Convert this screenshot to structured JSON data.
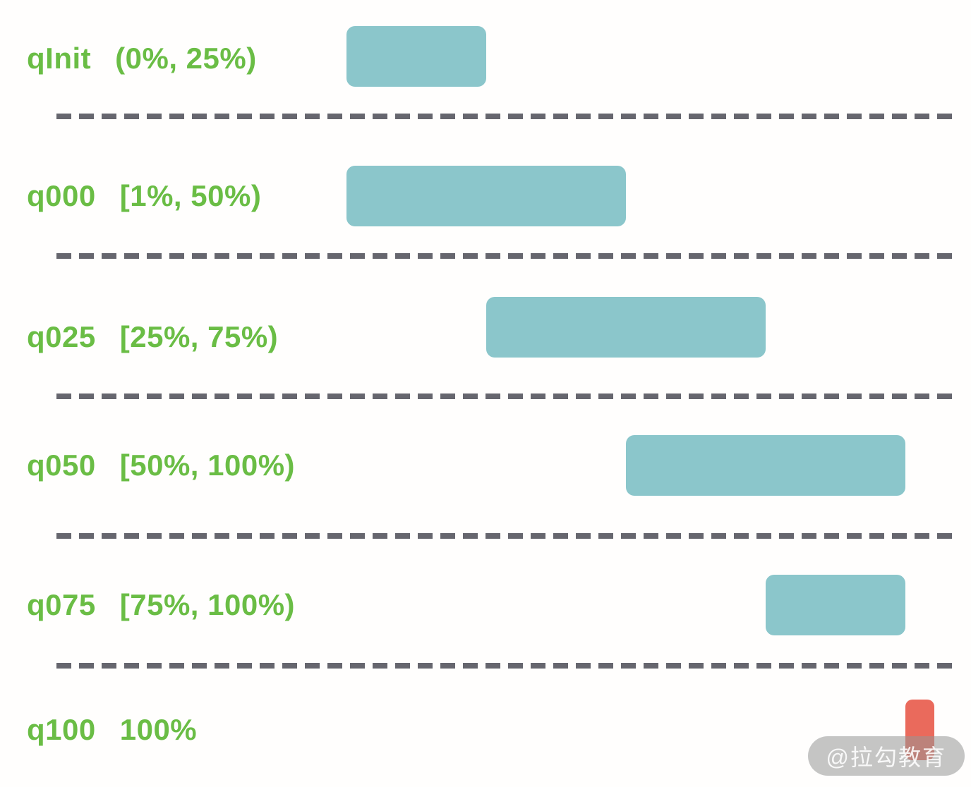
{
  "watermark": {
    "text": "@拉勾教育"
  },
  "chart_data": {
    "type": "bar",
    "subtype": "horizontal-interval-ranges",
    "title": "",
    "xlabel": "",
    "ylabel": "",
    "axis_visible": false,
    "x_range_pct": [
      0,
      100
    ],
    "grid": "dashed horizontal separators between rows",
    "rows": [
      {
        "name": "qInit",
        "range_label": "(0%, 25%)",
        "bar_start_pct": 0,
        "bar_end_pct": 25,
        "color": "teal"
      },
      {
        "name": "q000",
        "range_label": "[1%, 50%)",
        "bar_start_pct": 0,
        "bar_end_pct": 50,
        "color": "teal"
      },
      {
        "name": "q025",
        "range_label": "[25%, 75%)",
        "bar_start_pct": 25,
        "bar_end_pct": 75,
        "color": "teal"
      },
      {
        "name": "q050",
        "range_label": "[50%, 100%)",
        "bar_start_pct": 50,
        "bar_end_pct": 100,
        "color": "teal"
      },
      {
        "name": "q075",
        "range_label": "[75%, 100%)",
        "bar_start_pct": 75,
        "bar_end_pct": 100,
        "color": "teal"
      },
      {
        "name": "q100",
        "range_label": "100%",
        "bar_start_pct": 100,
        "bar_end_pct": 105.2,
        "color": "red"
      }
    ],
    "colors": {
      "teal": "#8bc6cb",
      "red": "#ea6a5c",
      "label_green": "#6abd45",
      "dash_gray": "#66666e"
    }
  }
}
